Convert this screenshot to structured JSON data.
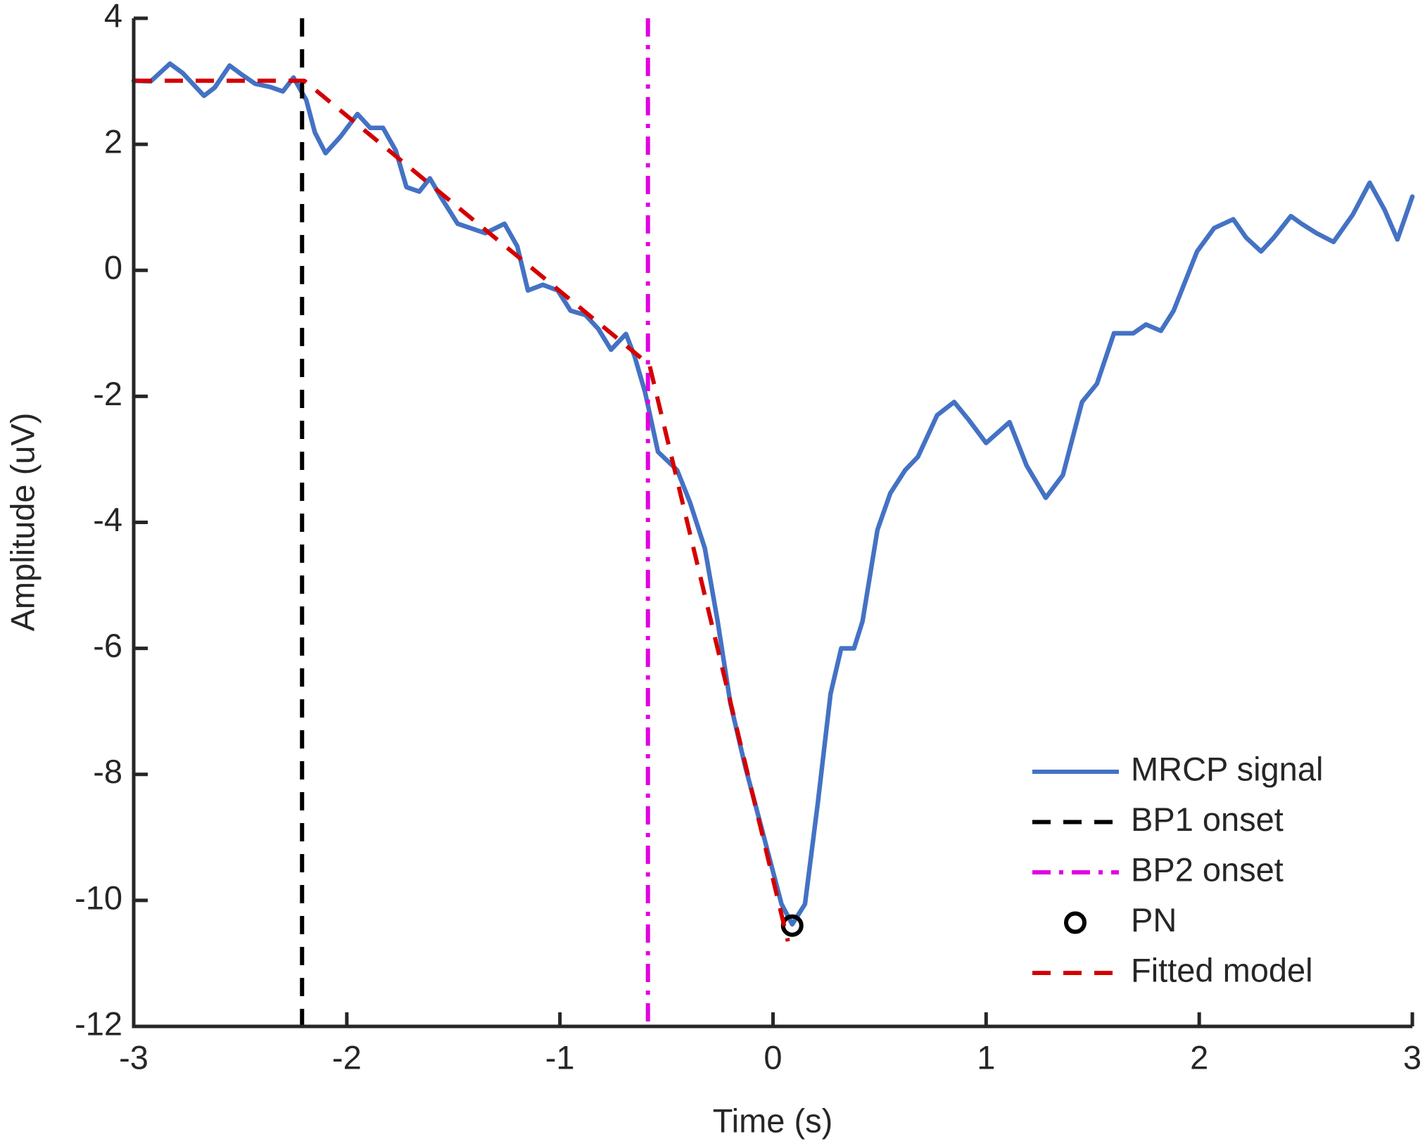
{
  "chart_data": {
    "type": "line",
    "xlabel": "Time (s)",
    "ylabel": "Amplitude (uV)",
    "xlim": [
      -3,
      3
    ],
    "ylim": [
      -12,
      4
    ],
    "xticks": [
      -3,
      -2,
      -1,
      0,
      1,
      2,
      3
    ],
    "yticks": [
      -12,
      -10,
      -8,
      -6,
      -4,
      -2,
      0,
      2,
      4
    ],
    "grid": false,
    "legend_location": "southeast",
    "series": [
      {
        "name": "MRCP signal",
        "color": "#4472c4",
        "style": "solid",
        "x": [
          -3,
          -2.92,
          -2.83,
          -2.77,
          -2.67,
          -2.62,
          -2.55,
          -2.49,
          -2.43,
          -2.36,
          -2.3,
          -2.25,
          -2.19,
          -2.15,
          -2.1,
          -2.03,
          -1.95,
          -1.89,
          -1.83,
          -1.77,
          -1.72,
          -1.66,
          -1.61,
          -1.56,
          -1.48,
          -1.42,
          -1.35,
          -1.26,
          -1.2,
          -1.15,
          -1.08,
          -1.01,
          -0.95,
          -0.88,
          -0.82,
          -0.76,
          -0.69,
          -0.65,
          -0.6,
          -0.54,
          -0.45,
          -0.39,
          -0.32,
          -0.26,
          -0.2,
          -0.13,
          -0.05,
          0.04,
          0.09,
          0.15,
          0.21,
          0.27,
          0.32,
          0.38,
          0.42,
          0.49,
          0.55,
          0.62,
          0.68,
          0.77,
          0.85,
          0.92,
          1.0,
          1.11,
          1.19,
          1.28,
          1.36,
          1.45,
          1.52,
          1.6,
          1.69,
          1.75,
          1.82,
          1.88,
          1.99,
          2.07,
          2.16,
          2.22,
          2.29,
          2.35,
          2.43,
          2.48,
          2.55,
          2.63,
          2.72,
          2.8,
          2.87,
          2.93,
          3.0
        ],
        "values": [
          3.01,
          3.0,
          3.28,
          3.13,
          2.77,
          2.9,
          3.25,
          3.1,
          2.96,
          2.91,
          2.84,
          3.06,
          2.7,
          2.19,
          1.86,
          2.12,
          2.48,
          2.26,
          2.26,
          1.9,
          1.32,
          1.25,
          1.46,
          1.17,
          0.74,
          0.67,
          0.59,
          0.74,
          0.38,
          -0.32,
          -0.23,
          -0.32,
          -0.64,
          -0.71,
          -0.93,
          -1.26,
          -1.01,
          -1.36,
          -1.94,
          -2.88,
          -3.17,
          -3.68,
          -4.41,
          -5.57,
          -6.87,
          -7.88,
          -8.9,
          -10.06,
          -10.38,
          -10.06,
          -8.46,
          -6.72,
          -6.0,
          -6.0,
          -5.57,
          -4.12,
          -3.54,
          -3.17,
          -2.96,
          -2.3,
          -2.09,
          -2.38,
          -2.74,
          -2.41,
          -3.1,
          -3.61,
          -3.25,
          -2.09,
          -1.8,
          -1.0,
          -1.0,
          -0.86,
          -0.96,
          -0.64,
          0.3,
          0.67,
          0.81,
          0.52,
          0.3,
          0.52,
          0.86,
          0.74,
          0.59,
          0.45,
          0.88,
          1.39,
          0.96,
          0.49,
          1.17
        ]
      },
      {
        "name": "BP1 onset",
        "color": "#000000",
        "style": "vline-dashed",
        "x": [
          -2.21
        ]
      },
      {
        "name": "BP2 onset",
        "color": "#e000e0",
        "style": "vline-dashdot",
        "x": [
          -0.587
        ]
      },
      {
        "name": "PN",
        "color": "#000000",
        "style": "marker",
        "x": [
          0.09
        ],
        "values": [
          -10.4
        ]
      },
      {
        "name": "Fitted model",
        "color": "#d40000",
        "style": "dashed",
        "x": [
          -3,
          -2.2,
          -0.58,
          0.07
        ],
        "values": [
          3.01,
          3.01,
          -1.5,
          -10.65
        ]
      }
    ]
  }
}
